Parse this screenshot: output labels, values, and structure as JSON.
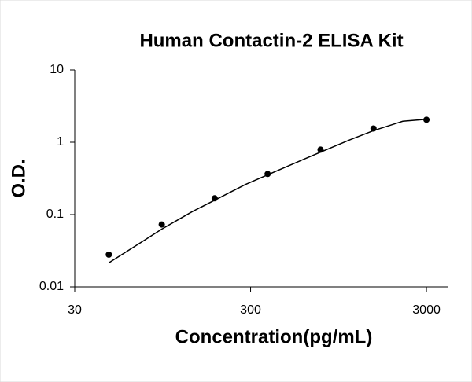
{
  "chart_data": {
    "type": "scatter",
    "title": "Human Contactin-2 ELISA Kit",
    "x_label": "Concentration(pg/mL)",
    "y_label": "O.D.",
    "log_x": true,
    "log_y": true,
    "xlim": [
      30,
      4000
    ],
    "ylim": [
      0.01,
      10
    ],
    "xticks": [
      30,
      300,
      3000
    ],
    "yticks": [
      0.01,
      0.1,
      1,
      10
    ],
    "color": "#000000",
    "x": [
      46.875,
      93.75,
      187.5,
      375,
      750,
      1500,
      3000
    ],
    "values": [
      0.028,
      0.073,
      0.168,
      0.365,
      0.79,
      1.55,
      2.05
    ],
    "fit": {
      "x": [
        46.875,
        70,
        93.75,
        140,
        187.5,
        280,
        375,
        550,
        750,
        1100,
        1500,
        2200,
        3000
      ],
      "values": [
        0.0215,
        0.04,
        0.063,
        0.11,
        0.158,
        0.26,
        0.355,
        0.53,
        0.73,
        1.08,
        1.45,
        1.95,
        2.08
      ]
    }
  }
}
